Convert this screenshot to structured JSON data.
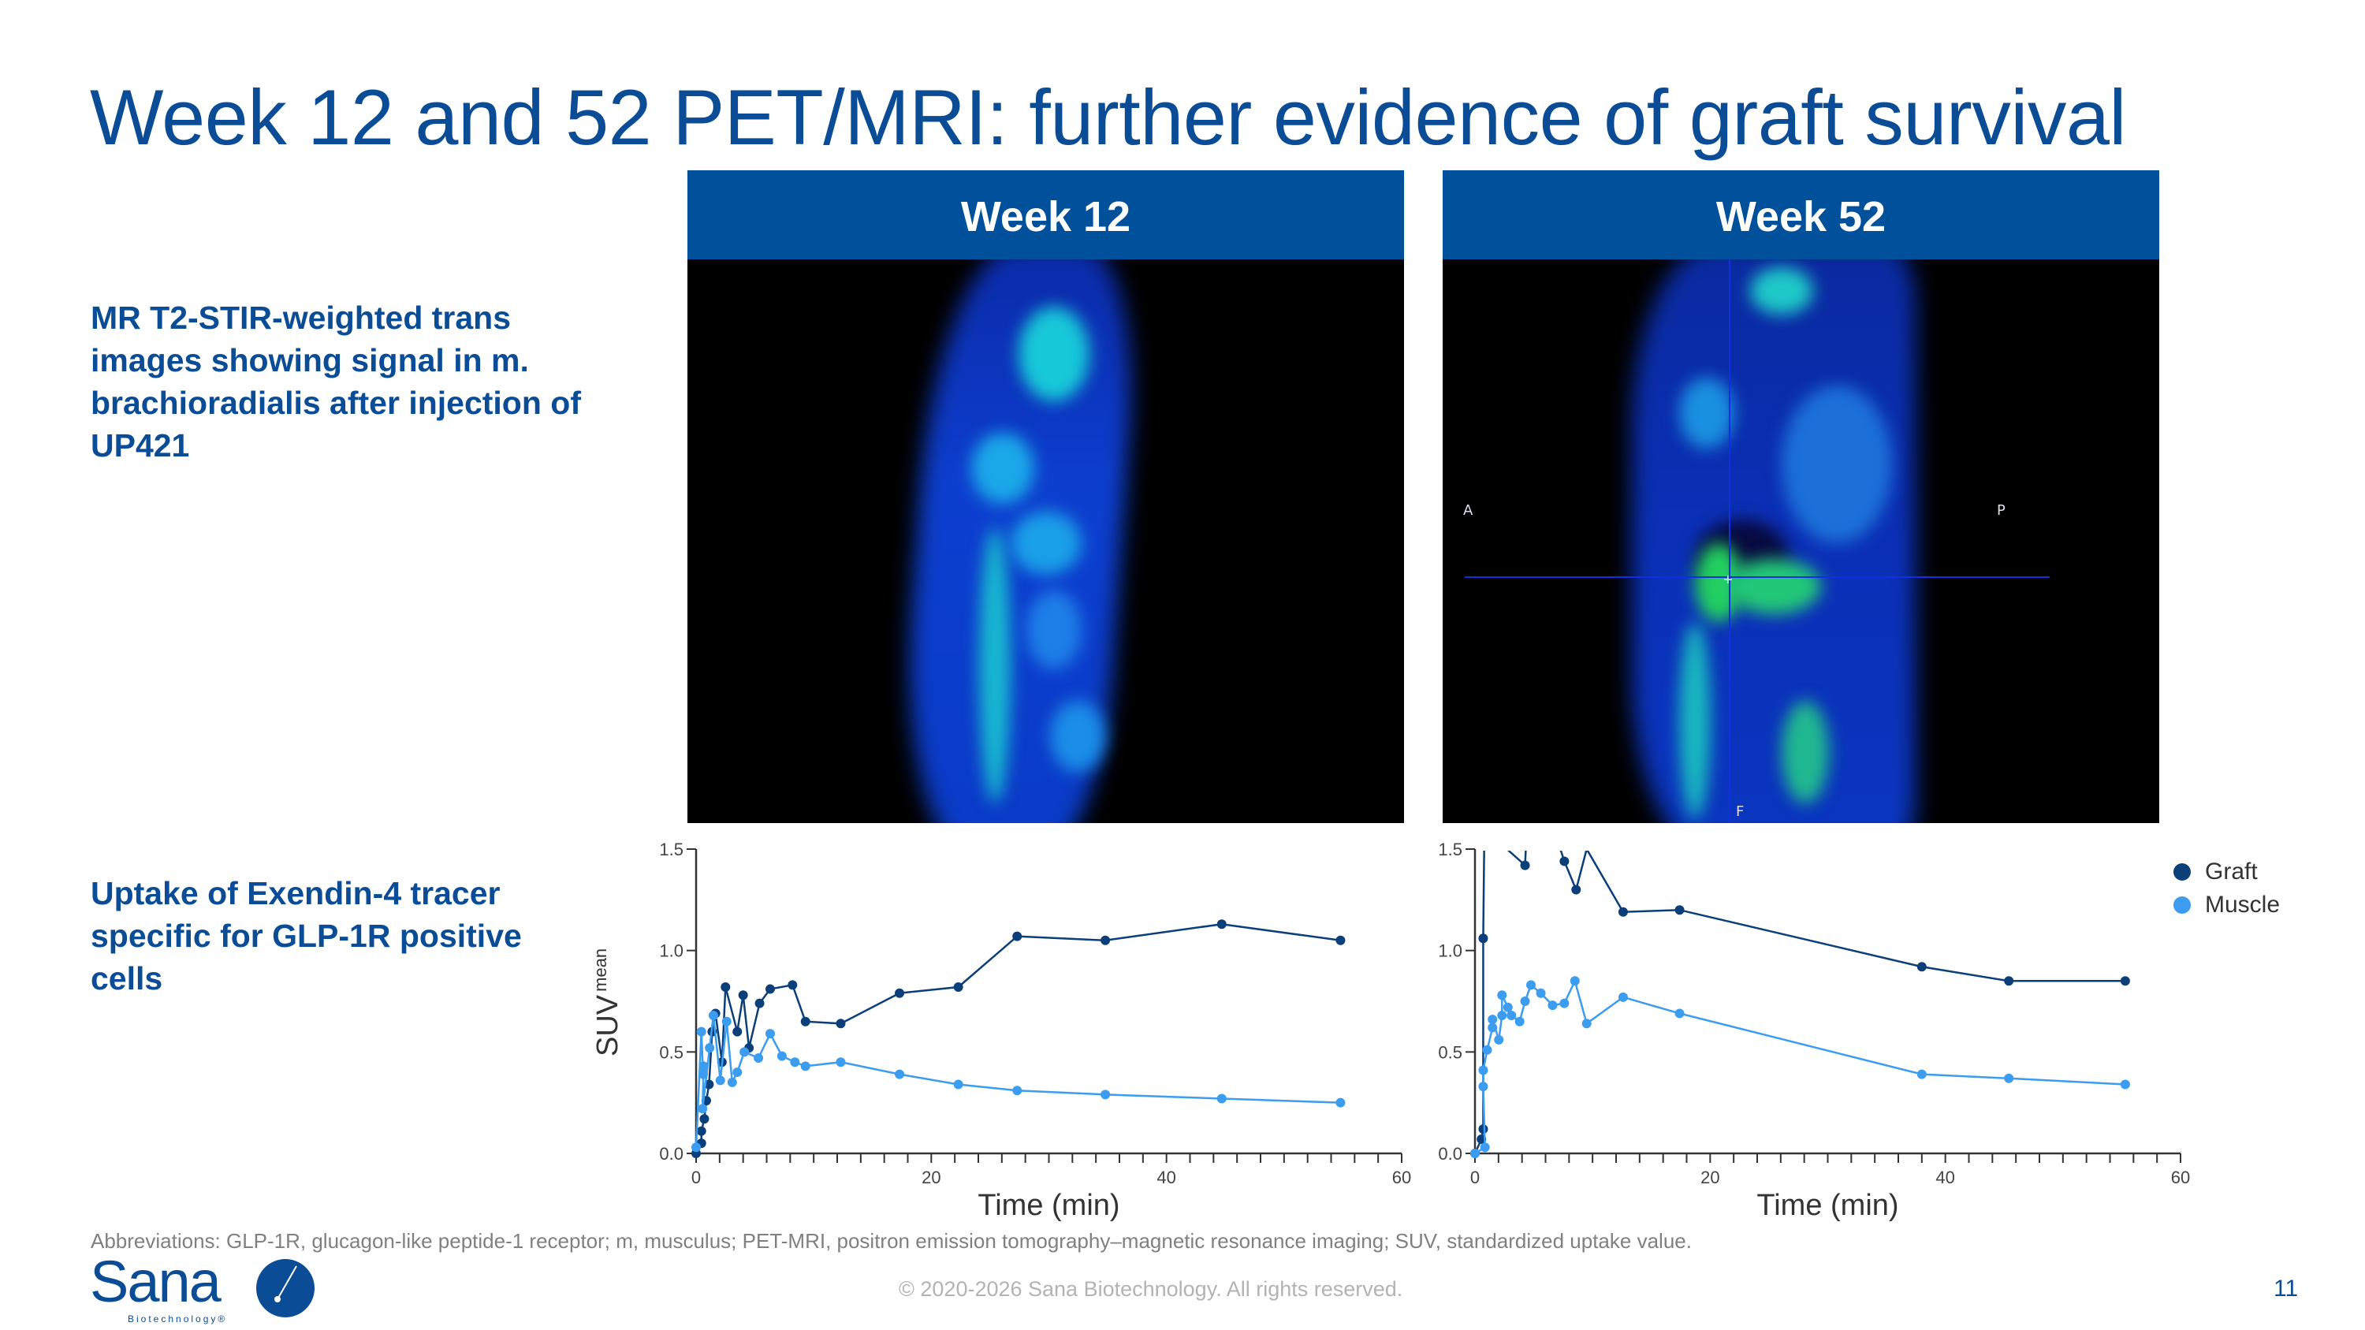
{
  "title": "Week 12 and 52 PET/MRI: further evidence of graft survival",
  "left_text": {
    "mri_description": [
      "MR T2-STIR-weighted trans",
      "images showing signal in m.",
      "brachioradialis after injection of",
      "UP421"
    ],
    "uptake_description": [
      "Uptake of Exendin-4 tracer",
      "specific for GLP-1R positive",
      "cells"
    ]
  },
  "panels": [
    {
      "label": "Week 12"
    },
    {
      "label": "Week 52",
      "orientation_labels": {
        "anterior": "A",
        "posterior": "P",
        "foot": "F"
      }
    }
  ],
  "legend": [
    {
      "label": "Graft",
      "color": "#0b3f7a"
    },
    {
      "label": "Muscle",
      "color": "#3b9cf0"
    }
  ],
  "chart_data": [
    {
      "type": "line",
      "title": "",
      "xlabel": "Time (min)",
      "ylabel": "SUV",
      "ylabel_subscript": "mean",
      "xlim": [
        0,
        60
      ],
      "ylim": [
        0,
        1.5
      ],
      "xticks": [
        0,
        20,
        40,
        60
      ],
      "yticks": [
        "0.0",
        "0.5",
        "1.0",
        "1.5"
      ],
      "grid": false,
      "series": [
        {
          "name": "Graft",
          "color": "#0b3f7a",
          "x": [
            0,
            0.45,
            0.45,
            0.7,
            0.87,
            1.1,
            1.37,
            1.65,
            2.2,
            2.5,
            3.5,
            4.0,
            4.5,
            5.4,
            6.3,
            8.2,
            9.3,
            12.3,
            17.3,
            22.3,
            27.3,
            34.8,
            44.7,
            54.8
          ],
          "y": [
            0,
            0.05,
            0.11,
            0.17,
            0.26,
            0.34,
            0.6,
            0.69,
            0.45,
            0.82,
            0.6,
            0.78,
            0.52,
            0.74,
            0.81,
            0.83,
            0.65,
            0.64,
            0.79,
            0.82,
            1.07,
            1.05,
            1.13,
            1.05
          ]
        },
        {
          "name": "Muscle",
          "color": "#3b9cf0",
          "x": [
            0,
            0.45,
            0.6,
            0.64,
            0.55,
            1.15,
            1.47,
            2.06,
            2.6,
            3.07,
            3.5,
            4.1,
            5.3,
            6.3,
            7.3,
            8.4,
            9.3,
            12.3,
            17.3,
            22.3,
            27.3,
            34.8,
            44.7,
            54.8
          ],
          "y": [
            0.03,
            0.6,
            0.39,
            0.43,
            0.22,
            0.52,
            0.68,
            0.36,
            0.65,
            0.35,
            0.4,
            0.5,
            0.47,
            0.59,
            0.48,
            0.45,
            0.43,
            0.45,
            0.39,
            0.34,
            0.31,
            0.29,
            0.27,
            0.25
          ]
        }
      ]
    },
    {
      "type": "line",
      "title": "",
      "xlabel": "Time (min)",
      "ylabel": "",
      "xlim": [
        0,
        60
      ],
      "ylim": [
        0,
        1.5
      ],
      "xticks": [
        0,
        20,
        40,
        60
      ],
      "yticks": [
        "0.0",
        "0.5",
        "1.0",
        "1.5"
      ],
      "grid": false,
      "legend_position": "top-right",
      "series": [
        {
          "name": "Graft",
          "color": "#0b3f7a",
          "x": [
            0,
            0.55,
            0.7,
            0.7,
            0.8,
            4.26,
            4.4,
            6.7,
            7.6,
            8.6,
            9.5,
            12.6,
            17.4,
            38.0,
            45.4,
            55.3
          ],
          "y": [
            0,
            0.07,
            0.12,
            1.06,
            1.6,
            1.42,
            1.6,
            1.6,
            1.44,
            1.3,
            1.5,
            1.19,
            1.2,
            0.92,
            0.85,
            0.85
          ],
          "marker_hidden_indices": [
            4,
            6,
            7,
            10
          ]
        },
        {
          "name": "Muscle",
          "color": "#3b9cf0",
          "x": [
            0,
            0.85,
            0.7,
            0.7,
            1.04,
            1.49,
            1.49,
            2.03,
            2.3,
            2.3,
            2.8,
            3.1,
            3.8,
            4.26,
            4.76,
            5.6,
            6.6,
            7.6,
            8.5,
            9.5,
            12.6,
            17.4,
            38.0,
            45.4,
            55.3
          ],
          "y": [
            0,
            0.03,
            0.33,
            0.41,
            0.51,
            0.62,
            0.66,
            0.56,
            0.68,
            0.78,
            0.72,
            0.68,
            0.65,
            0.75,
            0.83,
            0.79,
            0.73,
            0.74,
            0.85,
            0.64,
            0.77,
            0.69,
            0.39,
            0.37,
            0.34
          ]
        }
      ]
    }
  ],
  "footer": {
    "abbreviations": "Abbreviations: GLP-1R, glucagon-like peptide-1 receptor; m, musculus; PET-MRI, positron emission tomography–magnetic resonance imaging; SUV, standardized uptake value.",
    "copyright": "© 2020-2026 Sana Biotechnology. All rights reserved.",
    "page_number": "11",
    "logo_text": "Sana",
    "logo_subtext": "Biotechnology®"
  }
}
